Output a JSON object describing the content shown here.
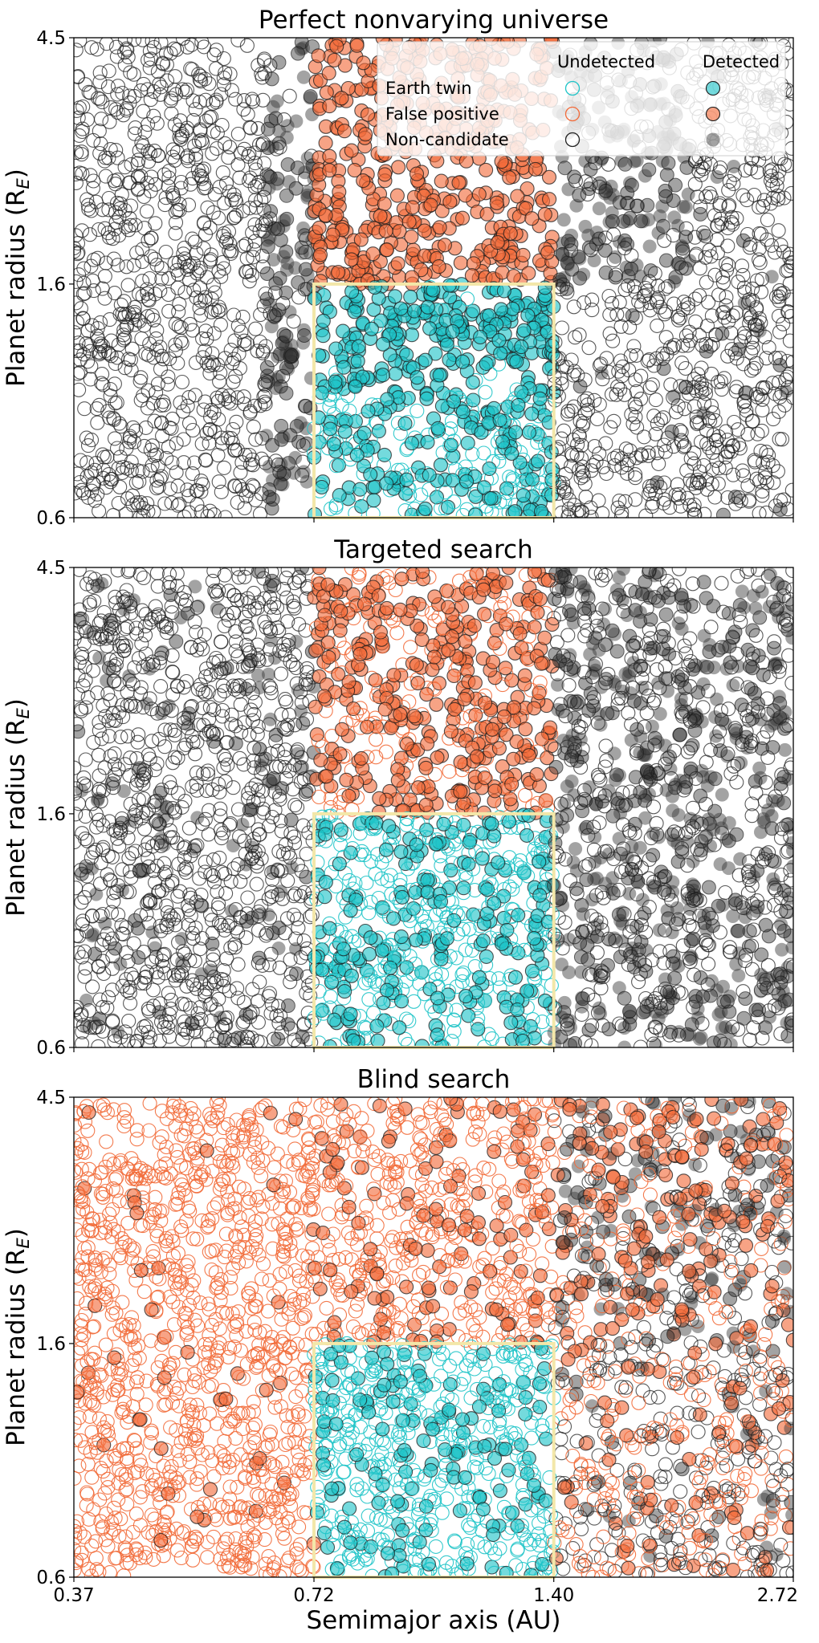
{
  "chart_data": {
    "type": "scatter",
    "x_scale": "log",
    "y_scale": "log",
    "xlabel": "Semimajor axis (AU)",
    "x_ticks": [
      "0.37",
      "0.72",
      "1.40",
      "2.72"
    ],
    "xlim": [
      0.37,
      2.72
    ],
    "colors": {
      "earth_twin": "#1fc4c8",
      "false_positive": "#f26b3a",
      "non_candidate": "#222222",
      "hz_box": "#f3e7a9"
    },
    "legend": {
      "placement": "top-right",
      "col_undetected": "Undetected",
      "col_detected": "Detected",
      "rows": [
        "Earth twin",
        "False positive",
        "Non-candidate"
      ]
    },
    "habitable_zone_box": {
      "x": [
        0.72,
        1.4
      ],
      "y": [
        0.6,
        1.6
      ]
    },
    "panels": [
      {
        "title": "Perfect nonvarying universe",
        "ylabel": "Planet radius (R",
        "ylabel_sub": "E",
        "ylabel_end": ")",
        "y_ticks": [
          "4.5",
          "1.6",
          "0.6"
        ],
        "ylim": [
          0.6,
          4.5
        ],
        "regions": [
          {
            "x": [
              0.37,
              0.63
            ],
            "y": [
              0.6,
              4.5
            ],
            "cls": "non_candidate",
            "detected_fraction": 0.0,
            "density": 0.55
          },
          {
            "x": [
              0.63,
              0.72
            ],
            "y": [
              0.6,
              4.5
            ],
            "cls": "non_candidate",
            "detected_fraction": 0.85,
            "density": 0.45
          },
          {
            "x": [
              0.72,
              1.4
            ],
            "y": [
              1.6,
              4.5
            ],
            "cls": "false_positive",
            "detected_fraction": 1.0,
            "density": 0.5
          },
          {
            "x": [
              0.72,
              1.4
            ],
            "y": [
              1.0,
              1.6
            ],
            "cls": "earth_twin",
            "detected_fraction": 0.92,
            "density": 0.6
          },
          {
            "x": [
              0.72,
              1.4
            ],
            "y": [
              0.6,
              1.0
            ],
            "cls": "earth_twin",
            "detected_fraction": 0.45,
            "density": 0.65
          },
          {
            "x": [
              1.4,
              2.05
            ],
            "y": [
              1.6,
              4.5
            ],
            "cls": "non_candidate",
            "detected_fraction": 0.8,
            "density": 0.45
          },
          {
            "x": [
              1.4,
              2.72
            ],
            "y": [
              0.6,
              1.6
            ],
            "cls": "non_candidate",
            "detected_fraction": 0.05,
            "density": 0.55
          },
          {
            "x": [
              2.05,
              2.72
            ],
            "y": [
              1.6,
              4.5
            ],
            "cls": "non_candidate",
            "detected_fraction": 0.05,
            "density": 0.55
          }
        ]
      },
      {
        "title": "Targeted search",
        "ylabel": "Planet radius (R",
        "ylabel_sub": "E",
        "ylabel_end": ")",
        "y_ticks": [
          "4.5",
          "1.6",
          "0.6"
        ],
        "ylim": [
          0.6,
          4.5
        ],
        "regions": [
          {
            "x": [
              0.37,
              0.72
            ],
            "y": [
              0.6,
              4.5
            ],
            "cls": "non_candidate",
            "detected_fraction": 0.12,
            "density": 0.6
          },
          {
            "x": [
              0.72,
              1.4
            ],
            "y": [
              1.6,
              4.5
            ],
            "cls": "false_positive",
            "detected_fraction": 0.6,
            "density": 0.55
          },
          {
            "x": [
              0.72,
              1.4
            ],
            "y": [
              0.6,
              1.6
            ],
            "cls": "earth_twin",
            "detected_fraction": 0.35,
            "density": 0.65
          },
          {
            "x": [
              1.4,
              2.72
            ],
            "y": [
              0.6,
              4.5
            ],
            "cls": "non_candidate",
            "detected_fraction": 0.55,
            "density": 0.55
          }
        ]
      },
      {
        "title": "Blind search",
        "ylabel": "Planet radius (R",
        "ylabel_sub": "E",
        "ylabel_end": ")",
        "y_ticks": [
          "4.5",
          "1.6",
          "0.6"
        ],
        "ylim": [
          0.6,
          4.5
        ],
        "regions": [
          {
            "x": [
              0.37,
              0.72
            ],
            "y": [
              0.6,
              4.5
            ],
            "cls": "false_positive",
            "detected_fraction": 0.04,
            "density": 0.6
          },
          {
            "x": [
              0.72,
              1.4
            ],
            "y": [
              1.6,
              4.5
            ],
            "cls": "false_positive",
            "detected_fraction": 0.2,
            "density": 0.55
          },
          {
            "x": [
              0.72,
              1.4
            ],
            "y": [
              0.6,
              1.6
            ],
            "cls": "earth_twin",
            "detected_fraction": 0.22,
            "density": 0.65
          },
          {
            "x": [
              1.4,
              2.72
            ],
            "y": [
              1.6,
              4.5
            ],
            "cls": "mixed",
            "detected_fraction": 0.5,
            "density": 0.55
          },
          {
            "x": [
              1.4,
              2.72
            ],
            "y": [
              0.6,
              1.6
            ],
            "cls": "mixed",
            "detected_fraction": 0.15,
            "density": 0.55
          }
        ]
      }
    ]
  }
}
